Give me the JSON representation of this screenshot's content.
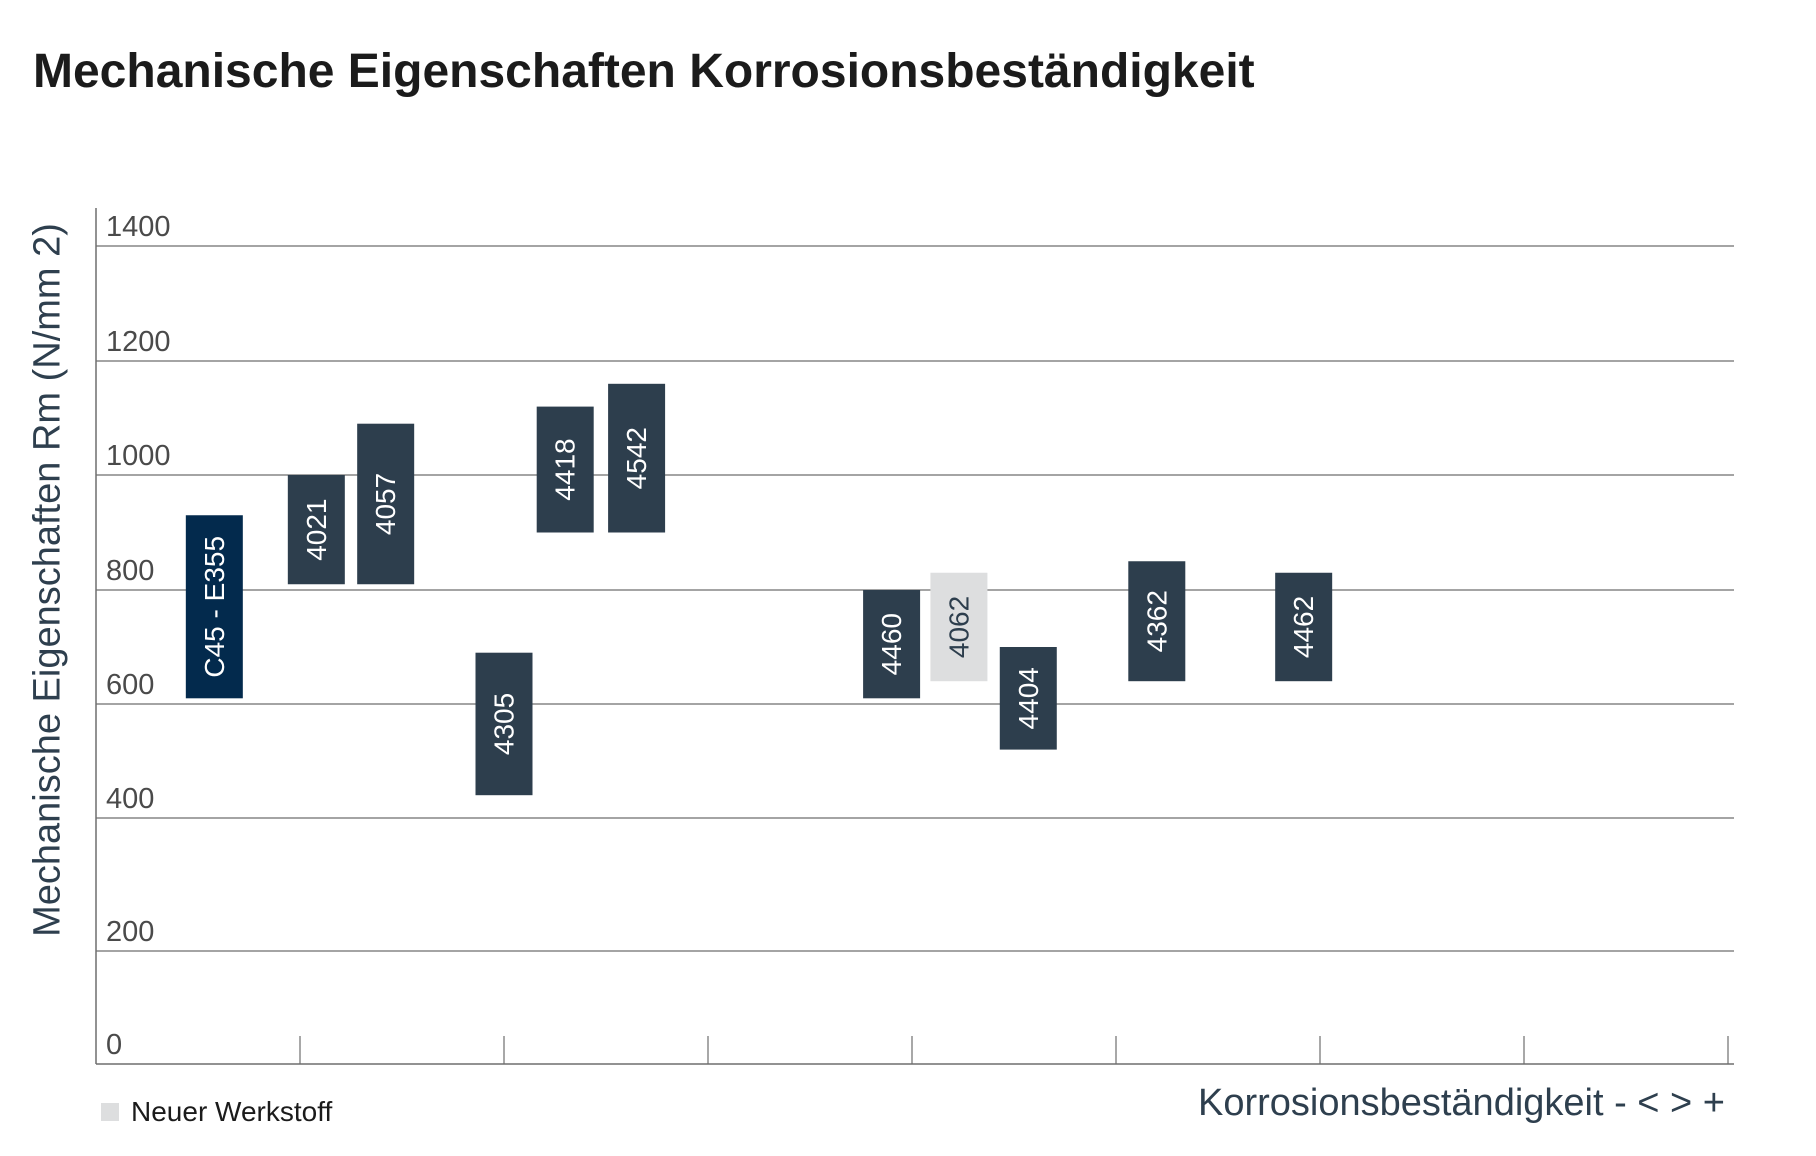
{
  "chart_data": {
    "type": "range-bar",
    "title": "Mechanische Eigenschaften Korrosionsbeständigkeit",
    "ylabel": "Mechanische Eigenschaften Rm (N/mm 2)",
    "xlabel": "Korrosionsbeständigkeit - < > +",
    "ylim": [
      0,
      1400
    ],
    "yticks": [
      0,
      200,
      400,
      600,
      800,
      1000,
      1200,
      1400
    ],
    "xlim": [
      0,
      8
    ],
    "grid": true,
    "legend": [
      {
        "label": "Neuer Werkstoff",
        "color": "#dddedf"
      }
    ],
    "legend_position": "bottom-left",
    "colors": {
      "standard": "#2d3e4d",
      "reference": "#032a4d",
      "new": "#dddedf",
      "text_light": "#ffffff",
      "text_dark": "#2d3e4d"
    },
    "bars": [
      {
        "label": "C45 - E355",
        "x": 0.58,
        "ymin": 610,
        "ymax": 930,
        "kind": "reference"
      },
      {
        "label": "4021",
        "x": 1.08,
        "ymin": 810,
        "ymax": 1000,
        "kind": "standard"
      },
      {
        "label": "4057",
        "x": 1.42,
        "ymin": 810,
        "ymax": 1090,
        "kind": "standard"
      },
      {
        "label": "4305",
        "x": 2.0,
        "ymin": 440,
        "ymax": 690,
        "kind": "standard"
      },
      {
        "label": "4418",
        "x": 2.3,
        "ymin": 900,
        "ymax": 1120,
        "kind": "standard"
      },
      {
        "label": "4542",
        "x": 2.65,
        "ymin": 900,
        "ymax": 1160,
        "kind": "standard"
      },
      {
        "label": "4460",
        "x": 3.9,
        "ymin": 610,
        "ymax": 800,
        "kind": "standard"
      },
      {
        "label": "4062",
        "x": 4.23,
        "ymin": 640,
        "ymax": 830,
        "kind": "new"
      },
      {
        "label": "4404",
        "x": 4.57,
        "ymin": 520,
        "ymax": 700,
        "kind": "standard"
      },
      {
        "label": "4362",
        "x": 5.2,
        "ymin": 640,
        "ymax": 850,
        "kind": "standard"
      },
      {
        "label": "4462",
        "x": 5.92,
        "ymin": 640,
        "ymax": 830,
        "kind": "standard"
      }
    ]
  }
}
